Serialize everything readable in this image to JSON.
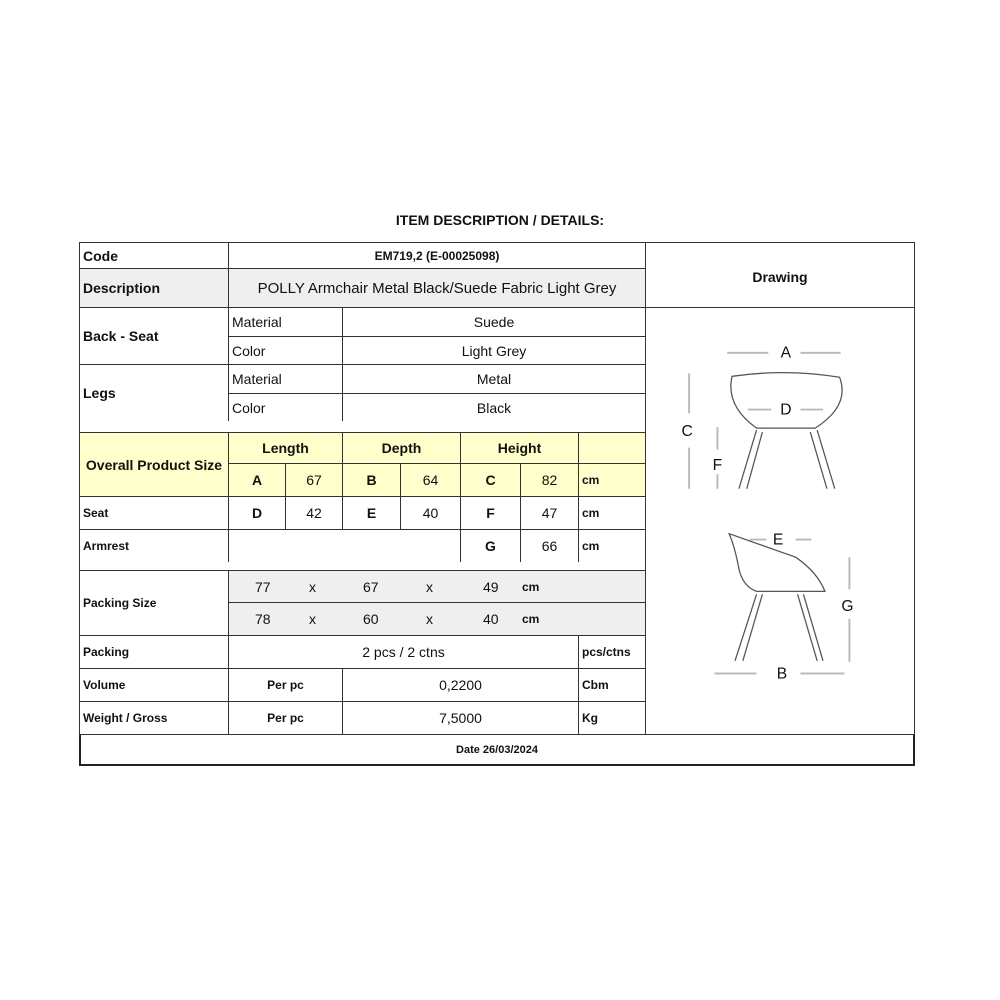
{
  "title": "ITEM DESCRIPTION / DETAILS:",
  "code": {
    "label": "Code",
    "value": "EM719,2 (E-00025098)"
  },
  "description": {
    "label": "Description",
    "value": "POLLY Armchair Metal Black/Suede Fabric Light Grey"
  },
  "drawing": {
    "label": "Drawing",
    "dims": [
      "A",
      "B",
      "C",
      "D",
      "E",
      "F",
      "G"
    ]
  },
  "back_seat": {
    "label": "Back - Seat",
    "material_label": "Material",
    "material": "Suede",
    "color_label": "Color",
    "color": "Light Grey"
  },
  "legs": {
    "label": "Legs",
    "material_label": "Material",
    "material": "Metal",
    "color_label": "Color",
    "color": "Black"
  },
  "overall": {
    "label": "Overall Product Size",
    "headers": [
      "Length",
      "Depth",
      "Height"
    ],
    "row": [
      "A",
      "67",
      "B",
      "64",
      "C",
      "82",
      "cm"
    ]
  },
  "seat": {
    "label": "Seat",
    "row": [
      "D",
      "42",
      "E",
      "40",
      "F",
      "47",
      "cm"
    ]
  },
  "armrest": {
    "label": "Armrest",
    "row": [
      "G",
      "66",
      "cm"
    ]
  },
  "packing_size": {
    "label": "Packing Size",
    "rows": [
      [
        "77",
        "x",
        "67",
        "x",
        "49",
        "cm"
      ],
      [
        "78",
        "x",
        "60",
        "x",
        "40",
        "cm"
      ]
    ]
  },
  "packing": {
    "label": "Packing",
    "value": "2 pcs / 2 ctns",
    "unit": "pcs/ctns"
  },
  "volume": {
    "label": "Volume",
    "per": "Per pc",
    "value": "0,2200",
    "unit": "Cbm"
  },
  "weight": {
    "label": "Weight / Gross",
    "per": "Per pc",
    "value": "7,5000",
    "unit": "Kg"
  },
  "date": "Date 26/03/2024",
  "colors": {
    "highlight": "#ffffcc",
    "shade": "#efefef"
  }
}
